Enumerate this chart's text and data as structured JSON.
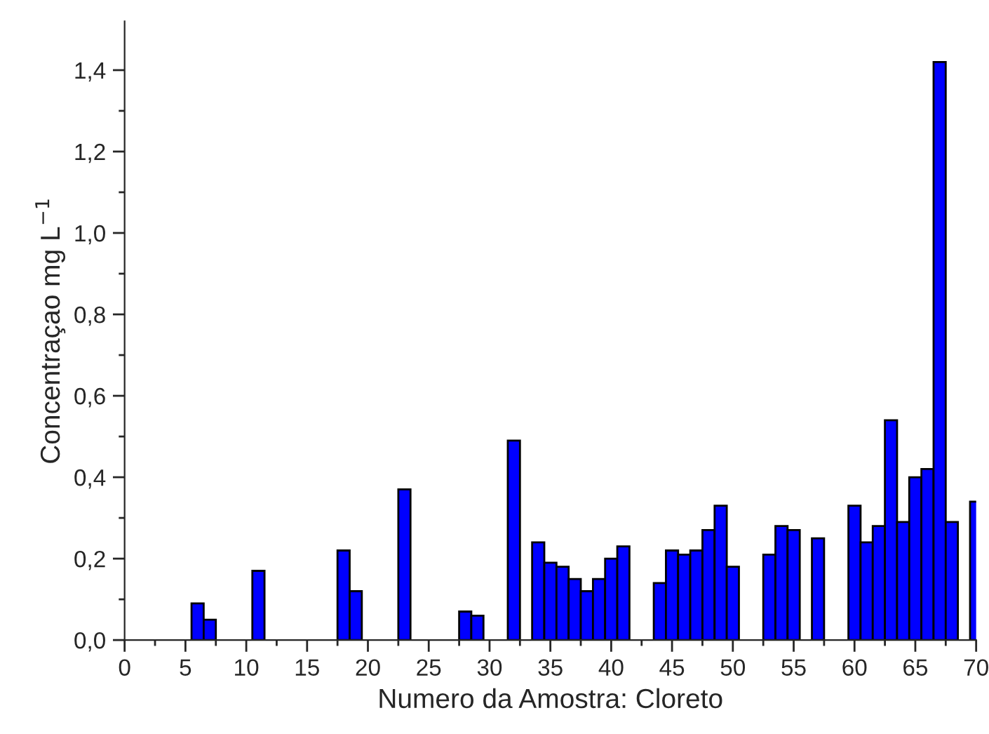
{
  "chart_data": {
    "type": "bar",
    "xlabel": "Numero da Amostra: Cloreto",
    "ylabel": "Concentraçao mg L$^{−1}$",
    "x": [
      6,
      7,
      11,
      18,
      19,
      23,
      28,
      29,
      32,
      34,
      35,
      36,
      37,
      38,
      39,
      40,
      41,
      44,
      45,
      46,
      47,
      48,
      49,
      50,
      53,
      54,
      55,
      57,
      60,
      61,
      62,
      63,
      64,
      65,
      66,
      67,
      68,
      70
    ],
    "series": [
      {
        "color": "#0000ff",
        "values": [
          0.09,
          0.05,
          0.17,
          0.22,
          0.12,
          0.37,
          0.07,
          0.06,
          0.49,
          0.24,
          0.19,
          0.18,
          0.15,
          0.12,
          0.15,
          0.2,
          0.23,
          0.14,
          0.22,
          0.21,
          0.22,
          0.27,
          0.33,
          0.18,
          0.21,
          0.28,
          0.27,
          0.25,
          0.33,
          0.24,
          0.28,
          0.54,
          0.29,
          0.4,
          0.42,
          1.42,
          0.29,
          0.34
        ]
      }
    ],
    "xlim": [
      0,
      70
    ],
    "xticks": [
      0,
      5,
      10,
      15,
      20,
      25,
      30,
      35,
      40,
      45,
      50,
      55,
      60,
      65,
      70
    ],
    "ylim": [
      0,
      1.52
    ],
    "yticks": [
      {
        "value": 0,
        "label": "0,0"
      },
      {
        "value": 0.2,
        "label": "0,2"
      },
      {
        "value": 0.4,
        "label": "0,4"
      },
      {
        "value": 0.6,
        "label": "0,6"
      },
      {
        "value": 0.8,
        "label": "0,8"
      },
      {
        "value": 1.0,
        "label": "1,0"
      },
      {
        "value": 1.2,
        "label": "1,2"
      },
      {
        "value": 1.4,
        "label": "1,4"
      }
    ],
    "grid": false,
    "legend": false
  }
}
